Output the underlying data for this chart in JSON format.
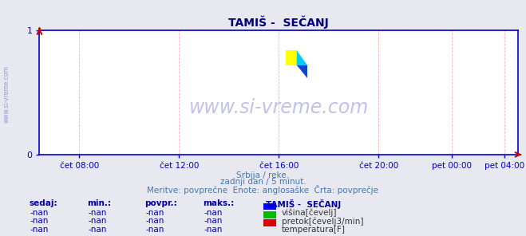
{
  "title": "TAMIŠ -  SEČANJ",
  "background_color": "#e8e8f0",
  "plot_bg_color": "#ffffff",
  "grid_color": "#ffb0b0",
  "axis_color": "#0000cc",
  "title_color": "#000080",
  "title_fontsize": 10,
  "xlim": [
    0,
    1
  ],
  "ylim": [
    0,
    1
  ],
  "yticks": [
    0,
    1
  ],
  "xtick_labels": [
    "čet 08:00",
    "čet 12:00",
    "čet 16:00",
    "čet 20:00",
    "pet 00:00",
    "pet 04:00"
  ],
  "xtick_positions": [
    0.0833,
    0.2917,
    0.5,
    0.7083,
    0.8611,
    0.9722
  ],
  "watermark": "www.si-vreme.com",
  "watermark_color": "#3333bb",
  "watermark_alpha": 0.3,
  "side_text": "www.si-vreme.com",
  "sub_text1": "Srbija / reke.",
  "sub_text2": "zadnji dan / 5 minut.",
  "sub_text3": "Meritve: povprečne  Enote: anglosаške  Črta: povprečje",
  "legend_title": "TAMIŠ -  SEČANJ",
  "legend_items": [
    {
      "label": "višina[čevelj]",
      "color": "#0000ff"
    },
    {
      "label": "pretok[čevelj3/min]",
      "color": "#00bb00"
    },
    {
      "label": "temperatura[F]",
      "color": "#dd0000"
    }
  ],
  "table_headers": [
    "sedaj:",
    "min.:",
    "povpr.:",
    "maks.:"
  ],
  "table_values": [
    "-nan",
    "-nan",
    "-nan",
    "-nan"
  ],
  "text_color_blue": "#0000cc",
  "text_color_table": "#0000aa",
  "logo_yellow": "#ffff00",
  "logo_cyan": "#00ccff",
  "logo_blue": "#1144cc"
}
